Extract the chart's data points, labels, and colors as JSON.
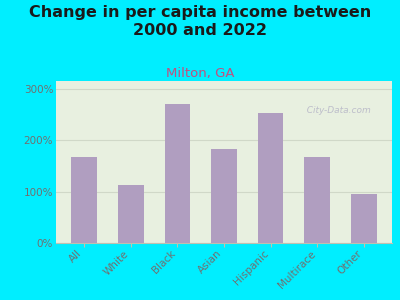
{
  "title": "Change in per capita income between\n2000 and 2022",
  "subtitle": "Milton, GA",
  "categories": [
    "All",
    "White",
    "Black",
    "Asian",
    "Hispanic",
    "Multirace",
    "Other"
  ],
  "values": [
    168,
    113,
    270,
    182,
    252,
    168,
    96
  ],
  "bar_color": "#b09ec0",
  "background_outer": "#00eeff",
  "background_inner": "#e8f0e0",
  "ylabel_ticks": [
    "0%",
    "100%",
    "200%",
    "300%"
  ],
  "ytick_vals": [
    0,
    100,
    200,
    300
  ],
  "ylim": [
    0,
    315
  ],
  "title_fontsize": 11.5,
  "subtitle_fontsize": 9.5,
  "subtitle_color": "#c05080",
  "tick_label_color": "#707070",
  "watermark": "  City-Data.com",
  "watermark_color": "#b8b8c8",
  "grid_color": "#d0d8c8",
  "spine_color": "#c0c0b0"
}
